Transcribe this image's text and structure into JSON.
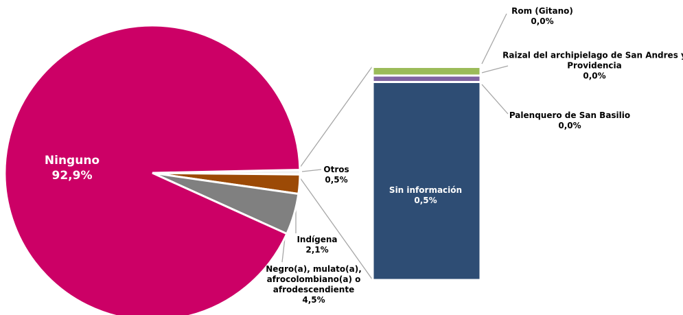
{
  "chart_data": [
    {
      "type": "pie",
      "categories": [
        "Ninguno",
        "Negro(a), mulato(a), afrocolombiano(a) o afrodescendiente",
        "Indígena",
        "Otros"
      ],
      "values": [
        92.9,
        4.5,
        2.1,
        0.5
      ],
      "value_labels": [
        "92,9%",
        "4,5%",
        "2,1%",
        "0,5%"
      ],
      "colors": [
        "#cc0066",
        "#808080",
        "#9c4a06",
        "#f2f2f2"
      ]
    },
    {
      "type": "stacked-bar",
      "categories": [
        "Sin información",
        "Palenquero de San Basilio",
        "Raizal del archipielago de San Andres y Providencia",
        "Rom (Gitano)"
      ],
      "values": [
        0.46,
        0.015,
        0.02,
        0.004
      ],
      "value_labels": [
        "0,5%",
        "0,0%",
        "0,0%",
        "0,0%"
      ],
      "colors": [
        "#2e4d74",
        "#8064a2",
        "#9bbb59",
        "#c0504d"
      ]
    }
  ]
}
